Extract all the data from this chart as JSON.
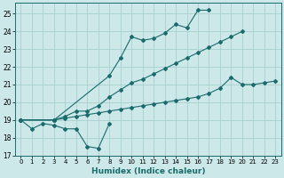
{
  "title": "",
  "xlabel": "Humidex (Indice chaleur)",
  "background_color": "#cce8e8",
  "grid_color": "#aacfcf",
  "line_color": "#1a6b6b",
  "xlim": [
    -0.5,
    23.5
  ],
  "ylim": [
    17,
    25.6
  ],
  "yticks": [
    17,
    18,
    19,
    20,
    21,
    22,
    23,
    24,
    25
  ],
  "xticks": [
    0,
    1,
    2,
    3,
    4,
    5,
    6,
    7,
    8,
    9,
    10,
    11,
    12,
    13,
    14,
    15,
    16,
    17,
    18,
    19,
    20,
    21,
    22,
    23
  ],
  "series": [
    {
      "x": [
        0,
        1,
        2,
        3,
        4,
        5,
        6,
        7,
        8
      ],
      "y": [
        19.0,
        18.5,
        18.8,
        18.7,
        18.5,
        18.5,
        17.5,
        17.4,
        18.8
      ]
    },
    {
      "x": [
        0,
        3,
        8,
        9,
        10,
        11,
        12,
        13,
        14,
        15,
        16,
        17
      ],
      "y": [
        19.0,
        19.0,
        21.5,
        22.5,
        23.7,
        23.5,
        23.6,
        23.9,
        24.4,
        24.2,
        25.2,
        25.2
      ]
    },
    {
      "x": [
        0,
        3,
        4,
        5,
        6,
        7,
        8,
        9,
        10,
        11,
        12,
        13,
        14,
        15,
        16,
        17,
        18,
        19,
        20
      ],
      "y": [
        19.0,
        19.0,
        19.2,
        19.5,
        19.5,
        19.8,
        20.3,
        20.7,
        21.1,
        21.3,
        21.6,
        21.9,
        22.2,
        22.5,
        22.8,
        23.1,
        23.4,
        23.7,
        24.0
      ]
    },
    {
      "x": [
        0,
        3,
        4,
        5,
        6,
        7,
        8,
        9,
        10,
        11,
        12,
        13,
        14,
        15,
        16,
        17,
        18,
        19,
        20,
        21,
        22,
        23
      ],
      "y": [
        19.0,
        19.0,
        19.1,
        19.2,
        19.3,
        19.4,
        19.5,
        19.6,
        19.7,
        19.8,
        19.9,
        20.0,
        20.1,
        20.2,
        20.3,
        20.5,
        20.8,
        21.4,
        21.0,
        21.0,
        21.1,
        21.2
      ]
    }
  ]
}
